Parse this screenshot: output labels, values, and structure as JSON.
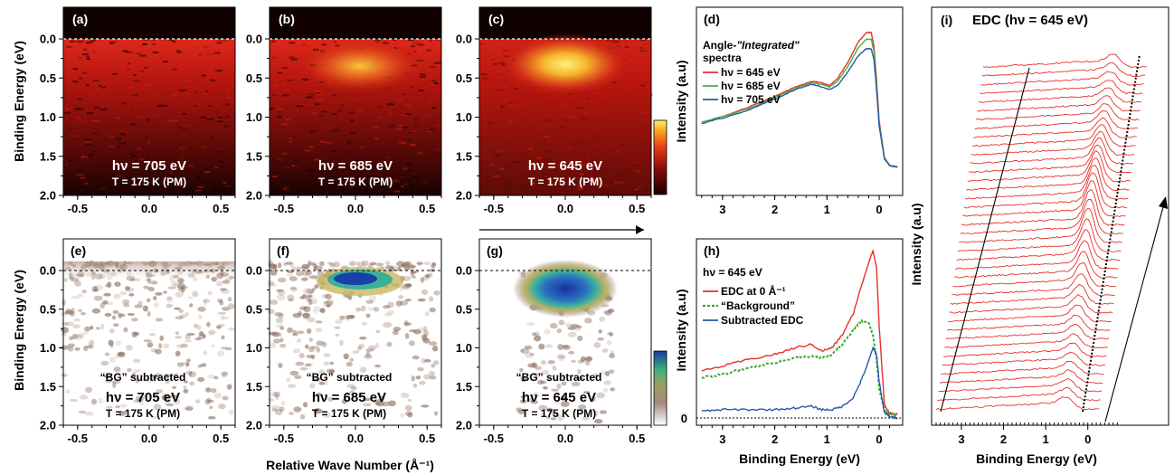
{
  "colors": {
    "red_line": "#e8302a",
    "green_line": "#44b23a",
    "blue_line": "#2a5aa8",
    "bg_dotted": "#3aa82a"
  },
  "top_row": {
    "ylabel": "Binding Energy (eV)",
    "yticks": [
      "0.0",
      "0.5",
      "1.0",
      "1.5",
      "2.0"
    ],
    "xticks": [
      "-0.5",
      "0.0",
      "0.5"
    ],
    "panels": [
      {
        "letter": "(a)",
        "hv": "hν = 705 eV",
        "temp": "T = 175 K (PM)"
      },
      {
        "letter": "(b)",
        "hv": "hν = 685 eV",
        "temp": "T = 175 K (PM)"
      },
      {
        "letter": "(c)",
        "hv": "hν = 645 eV",
        "temp": "T = 175 K (PM)"
      }
    ]
  },
  "bottom_row": {
    "ylabel": "Binding Energy (eV)",
    "xlabel": "Relative Wave Number (Å⁻¹)",
    "panels": [
      {
        "letter": "(e)",
        "bg": "“BG” subtracted",
        "hv": "hν = 705 eV",
        "temp": "T = 175 K (PM)"
      },
      {
        "letter": "(f)",
        "bg": "“BG” subtracted",
        "hv": "hν = 685 eV",
        "temp": "T = 175 K (PM)"
      },
      {
        "letter": "(g)",
        "bg": "“BG” subtracted",
        "hv": "hν = 645 eV",
        "temp": "T = 175 K (PM)"
      }
    ]
  },
  "panel_d": {
    "letter": "(d)",
    "title_line1": "Angle-",
    "title_italic": "\"Integrated\"",
    "title_line2": "spectra",
    "ylabel": "Intensity (a.u)",
    "legend": [
      "hν = 645 eV",
      "hν = 685 eV",
      "hν = 705 eV"
    ],
    "xticks": [
      "3",
      "2",
      "1",
      "0"
    ]
  },
  "panel_h": {
    "letter": "(h)",
    "title": "hν = 645 eV",
    "ylabel": "Intensity (a.u)",
    "xlabel": "Binding Energy (eV)",
    "legend": [
      "EDC at 0 Å⁻¹",
      "“Background”",
      "Subtracted EDC"
    ],
    "zero_label": "0",
    "xticks": [
      "3",
      "2",
      "1",
      "0"
    ]
  },
  "panel_i": {
    "letter": "(i)",
    "title": "EDC (hν = 645 eV)",
    "ylabel": "Intensity (a.u)",
    "xlabel": "Binding Energy (eV)",
    "xticks": [
      "3",
      "2",
      "1",
      "0"
    ]
  },
  "chart_data": [
    {
      "type": "line",
      "title": "",
      "xlabel": "",
      "ylabel": "Intensity (a.u)",
      "xlim": [
        3.5,
        -0.45
      ],
      "series": [
        {
          "name": "hν = 645 eV",
          "x": [
            3.4,
            3.0,
            2.5,
            2.0,
            1.6,
            1.3,
            1.1,
            0.95,
            0.8,
            0.6,
            0.4,
            0.25,
            0.15,
            0.1,
            0.05,
            0.0,
            -0.1,
            -0.2,
            -0.35
          ],
          "values": [
            0.34,
            0.38,
            0.45,
            0.53,
            0.6,
            0.64,
            0.63,
            0.61,
            0.66,
            0.78,
            0.93,
            1.0,
            1.0,
            0.9,
            0.65,
            0.35,
            0.08,
            0.02,
            0.01
          ]
        },
        {
          "name": "hν = 685 eV",
          "x": [
            3.4,
            3.0,
            2.5,
            2.0,
            1.6,
            1.3,
            1.1,
            0.95,
            0.8,
            0.6,
            0.4,
            0.25,
            0.15,
            0.1,
            0.05,
            0.0,
            -0.1,
            -0.2,
            -0.35
          ],
          "values": [
            0.34,
            0.38,
            0.44,
            0.52,
            0.59,
            0.63,
            0.62,
            0.6,
            0.64,
            0.75,
            0.89,
            0.95,
            0.95,
            0.86,
            0.62,
            0.33,
            0.08,
            0.02,
            0.01
          ]
        },
        {
          "name": "hν = 705 eV",
          "x": [
            3.4,
            3.0,
            2.5,
            2.0,
            1.6,
            1.3,
            1.1,
            0.95,
            0.8,
            0.6,
            0.4,
            0.25,
            0.15,
            0.1,
            0.05,
            0.0,
            -0.1,
            -0.2,
            -0.35
          ],
          "values": [
            0.33,
            0.37,
            0.43,
            0.51,
            0.58,
            0.62,
            0.6,
            0.58,
            0.61,
            0.71,
            0.83,
            0.88,
            0.88,
            0.8,
            0.58,
            0.31,
            0.07,
            0.02,
            0.01
          ]
        }
      ],
      "xticks": [
        3,
        2,
        1,
        0
      ]
    },
    {
      "type": "line",
      "title": "",
      "xlabel": "Binding Energy (eV)",
      "ylabel": "Intensity (a.u)",
      "xlim": [
        3.5,
        -0.45
      ],
      "series": [
        {
          "name": "EDC at 0 Å⁻¹",
          "x": [
            3.4,
            3.0,
            2.5,
            2.0,
            1.6,
            1.3,
            1.1,
            0.9,
            0.7,
            0.5,
            0.35,
            0.2,
            0.12,
            0.05,
            0.0,
            -0.1,
            -0.2,
            -0.35
          ],
          "values": [
            0.28,
            0.31,
            0.35,
            0.38,
            0.42,
            0.44,
            0.4,
            0.42,
            0.5,
            0.62,
            0.78,
            0.93,
            1.0,
            0.9,
            0.55,
            0.08,
            0.03,
            0.02
          ]
        },
        {
          "name": "“Background”",
          "x": [
            3.4,
            3.0,
            2.5,
            2.0,
            1.6,
            1.3,
            1.1,
            0.9,
            0.7,
            0.5,
            0.35,
            0.2,
            0.12,
            0.05,
            0.0,
            -0.1,
            -0.2,
            -0.35
          ],
          "values": [
            0.24,
            0.26,
            0.3,
            0.33,
            0.36,
            0.37,
            0.36,
            0.38,
            0.44,
            0.52,
            0.58,
            0.57,
            0.5,
            0.35,
            0.18,
            0.04,
            0.02,
            0.02
          ]
        },
        {
          "name": "Subtracted EDC",
          "x": [
            3.4,
            3.0,
            2.5,
            2.0,
            1.6,
            1.3,
            1.1,
            0.9,
            0.7,
            0.5,
            0.35,
            0.2,
            0.12,
            0.05,
            0.0,
            -0.1,
            -0.2,
            -0.35
          ],
          "values": [
            0.04,
            0.05,
            0.05,
            0.05,
            0.06,
            0.07,
            0.05,
            0.05,
            0.07,
            0.12,
            0.22,
            0.34,
            0.42,
            0.38,
            0.22,
            0.03,
            0.01,
            0.0
          ]
        }
      ],
      "xticks": [
        3,
        2,
        1,
        0
      ]
    },
    {
      "type": "line",
      "title": "EDC (hν = 645 eV)",
      "xlabel": "Binding Energy (eV)",
      "ylabel": "Intensity (a.u)",
      "xlim": [
        3.6,
        -0.8
      ],
      "xticks": [
        3,
        2,
        1,
        0
      ],
      "series_count": 40
    }
  ]
}
